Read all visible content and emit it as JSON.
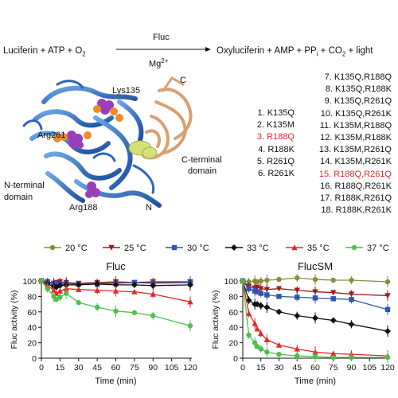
{
  "reaction": {
    "left": "Luciferin + ATP + O",
    "left_sub": "2",
    "enzyme": "Fluc",
    "cofactor": "Mg",
    "cofactor_sup": "2+",
    "right_a": "Oxyluciferin + AMP + PP",
    "right_sub1": "i",
    "right_b": " + CO",
    "right_sub2": "2",
    "right_c": " + light"
  },
  "structure_labels": {
    "lys135": "Lys135",
    "arg261": "Arg261",
    "arg188": "Arg188",
    "c": "C",
    "n": "N",
    "cterm_1": "C-terminal",
    "cterm_2": "domain",
    "nterm_1": "N-terminal",
    "nterm_2": "domain"
  },
  "single_mutants": [
    "1. K135Q",
    "2. K135M",
    "3. R188Q",
    "4. R188K",
    "5. R261Q",
    "6. R261K"
  ],
  "double_mutants": [
    "7. K135Q,R188Q",
    "8. K135Q,R188K",
    "9. K135Q,R261Q",
    "10. K135Q,R261K",
    "11. K135M,R188Q",
    "12. K135M,R188K",
    "13. K135M,R261Q",
    "14. K135M,R261K",
    "15. R188Q,R261Q",
    "16. R188Q,R261K",
    "17. R188K,R261Q",
    "18. R188K,R261K"
  ],
  "highlight_color": "#e8262a",
  "chart_data": [
    {
      "type": "line",
      "title": "Fluc",
      "xlabel": "Time (min)",
      "ylabel": "Fluc activity (%)",
      "xlim": [
        0,
        120
      ],
      "ylim": [
        0,
        100
      ],
      "xticks": [
        0,
        15,
        30,
        45,
        60,
        75,
        90,
        105,
        120
      ],
      "yticks": [
        0,
        20,
        40,
        60,
        80,
        100
      ],
      "legend_position": "top",
      "x": [
        0,
        5,
        10,
        12,
        15,
        20,
        30,
        45,
        60,
        75,
        90,
        120
      ],
      "series": [
        {
          "name": "20 °C",
          "color": "#8b8b3a",
          "marker": "circle",
          "values": [
            100,
            99,
            97,
            98,
            96,
            95,
            96,
            97,
            98,
            98,
            98,
            99
          ]
        },
        {
          "name": "25 °C",
          "color": "#a3191b",
          "marker": "triangle-down",
          "values": [
            100,
            99,
            97,
            98,
            99,
            98,
            97,
            98,
            99,
            98,
            99,
            99
          ]
        },
        {
          "name": "30 °C",
          "color": "#2f55b0",
          "marker": "square",
          "values": [
            100,
            98,
            97,
            95,
            96,
            97,
            96,
            96,
            97,
            98,
            97,
            98
          ]
        },
        {
          "name": "33 °C",
          "color": "#111111",
          "marker": "diamond",
          "values": [
            100,
            96,
            93,
            92,
            94,
            95,
            95,
            96,
            95,
            95,
            94,
            95
          ]
        },
        {
          "name": "35 °C",
          "color": "#e8262a",
          "marker": "triangle-up",
          "values": [
            100,
            94,
            88,
            84,
            87,
            90,
            89,
            88,
            87,
            86,
            83,
            73
          ]
        },
        {
          "name": "37 °C",
          "color": "#4cc04c",
          "marker": "circle",
          "values": [
            100,
            90,
            80,
            76,
            79,
            84,
            72,
            66,
            61,
            59,
            55,
            42
          ]
        }
      ]
    },
    {
      "type": "line",
      "title": "FlucSM",
      "xlabel": "Time (min)",
      "ylabel": "Fluc activity (%)",
      "xlim": [
        0,
        120
      ],
      "ylim": [
        0,
        100
      ],
      "xticks": [
        0,
        15,
        30,
        45,
        60,
        75,
        90,
        105,
        120
      ],
      "yticks": [
        0,
        20,
        40,
        60,
        80,
        100
      ],
      "x": [
        0,
        5,
        10,
        12,
        15,
        20,
        30,
        45,
        60,
        75,
        90,
        120
      ],
      "series": [
        {
          "name": "20 °C",
          "color": "#8b8b3a",
          "marker": "circle",
          "values": [
            100,
            99,
            100,
            99,
            100,
            101,
            102,
            104,
            102,
            101,
            101,
            99
          ]
        },
        {
          "name": "25 °C",
          "color": "#a3191b",
          "marker": "triangle-down",
          "values": [
            100,
            93,
            91,
            92,
            90,
            89,
            90,
            88,
            86,
            85,
            83,
            81
          ]
        },
        {
          "name": "30 °C",
          "color": "#2f55b0",
          "marker": "square",
          "values": [
            100,
            90,
            87,
            86,
            84,
            82,
            80,
            79,
            78,
            77,
            76,
            63
          ]
        },
        {
          "name": "33 °C",
          "color": "#111111",
          "marker": "diamond",
          "values": [
            100,
            75,
            70,
            70,
            68,
            66,
            60,
            55,
            52,
            49,
            44,
            35
          ]
        },
        {
          "name": "35 °C",
          "color": "#e8262a",
          "marker": "triangle-up",
          "values": [
            100,
            58,
            45,
            38,
            32,
            24,
            17,
            12,
            8,
            6,
            5,
            3
          ]
        },
        {
          "name": "37 °C",
          "color": "#4cc04c",
          "marker": "circle",
          "values": [
            100,
            30,
            20,
            15,
            12,
            8,
            5,
            3,
            2,
            1,
            1,
            1
          ]
        }
      ]
    }
  ]
}
